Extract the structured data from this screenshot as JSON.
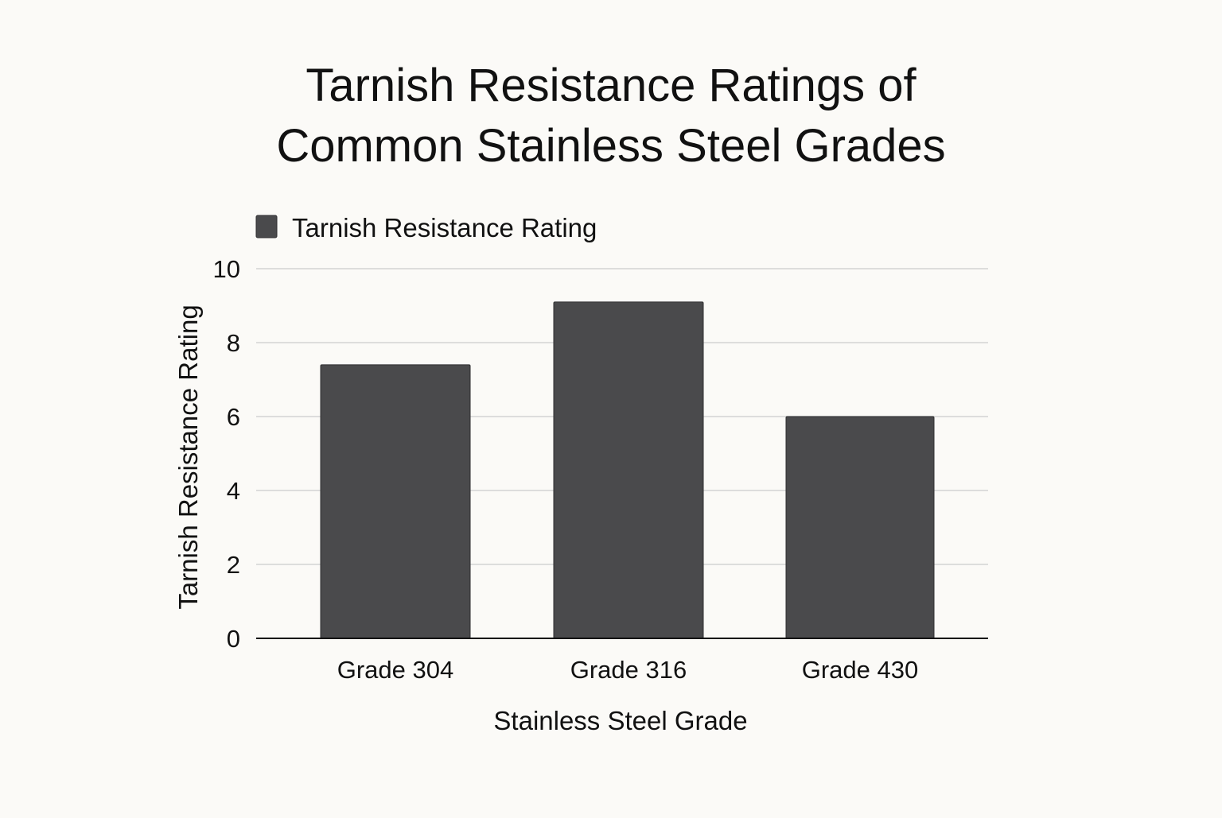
{
  "chart_data": {
    "type": "bar",
    "title_lines": [
      "Tarnish Resistance Ratings of",
      "Common Stainless Steel Grades"
    ],
    "legend": {
      "label": "Tarnish Resistance Rating",
      "placement": "top-left"
    },
    "xlabel": "Stainless Steel Grade",
    "ylabel": "Tarnish Resistance Rating",
    "categories": [
      "Grade 304",
      "Grade 316",
      "Grade 430"
    ],
    "series": [
      {
        "name": "Tarnish Resistance Rating",
        "values": [
          7.4,
          9.1,
          6.0
        ],
        "color": "#4a4a4c"
      }
    ],
    "ylim": [
      0,
      10
    ],
    "yticks": [
      0,
      2,
      4,
      6,
      8,
      10
    ],
    "grid": true,
    "colors": {
      "background": "#fbfaf7",
      "bar": "#4a4a4c",
      "bar_stroke": "#2f2f31",
      "grid": "#d3d3d3",
      "axis": "#111111",
      "text": "#111111"
    }
  }
}
